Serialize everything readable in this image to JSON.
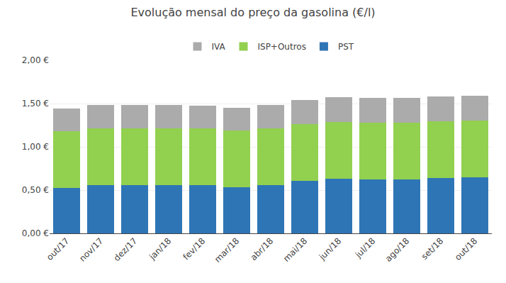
{
  "chart_data": {
    "type": "bar",
    "stacked": true,
    "title": "Evolução mensal do preço da gasolina (€/l)",
    "categories": [
      "out/17",
      "nov/17",
      "dez/17",
      "jan/18",
      "fev/18",
      "mar/18",
      "abr/18",
      "mai/18",
      "jun/18",
      "jul/18",
      "ago/18",
      "set/18",
      "out/18"
    ],
    "series": [
      {
        "name": "PST",
        "color": "#2E75B6",
        "values": [
          0.525,
          0.555,
          0.56,
          0.558,
          0.555,
          0.53,
          0.558,
          0.61,
          0.635,
          0.625,
          0.625,
          0.64,
          0.645
        ]
      },
      {
        "name": "ISP+Outros",
        "color": "#92D050",
        "values": [
          0.655,
          0.655,
          0.655,
          0.655,
          0.655,
          0.655,
          0.655,
          0.655,
          0.655,
          0.655,
          0.655,
          0.655,
          0.655
        ]
      },
      {
        "name": "IVA",
        "color": "#ABABAB",
        "values": [
          0.265,
          0.27,
          0.268,
          0.272,
          0.268,
          0.268,
          0.272,
          0.28,
          0.287,
          0.287,
          0.287,
          0.287,
          0.292
        ]
      }
    ],
    "ylim": [
      0,
      2.0
    ],
    "yticks": [
      {
        "value": 0.0,
        "label": "0,00 €"
      },
      {
        "value": 0.5,
        "label": "0,50 €"
      },
      {
        "value": 1.0,
        "label": "1,00 €"
      },
      {
        "value": 1.5,
        "label": "1,50 €"
      },
      {
        "value": 2.0,
        "label": "2,00 €"
      }
    ],
    "grid": true,
    "legend": "top"
  }
}
